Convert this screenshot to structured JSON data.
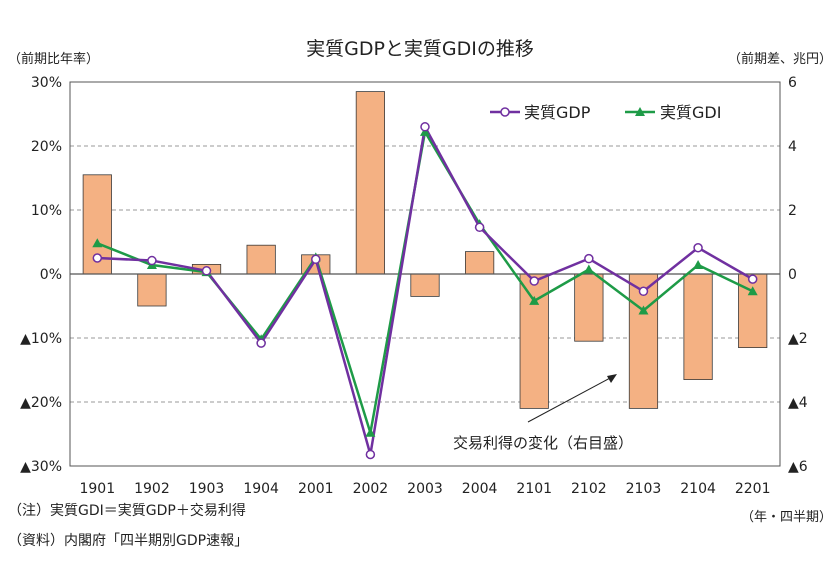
{
  "chart_data": {
    "type": "bar+line",
    "title": "実質GDPと実質GDIの推移",
    "ylabel_left": "（前期比年率）",
    "ylabel_right": "（前期差、兆円）",
    "xlabel": "（年・四半期）",
    "categories": [
      "1901",
      "1902",
      "1903",
      "1904",
      "2001",
      "2002",
      "2003",
      "2004",
      "2101",
      "2102",
      "2103",
      "2104",
      "2201"
    ],
    "left_axis": {
      "min": -30,
      "max": 30,
      "ticks": [
        30,
        20,
        10,
        0,
        -10,
        -20,
        -30
      ],
      "tick_labels": [
        "30%",
        "20%",
        "10%",
        "0%",
        "▲10%",
        "▲20%",
        "▲30%"
      ]
    },
    "right_axis": {
      "min": -6,
      "max": 6,
      "ticks": [
        6,
        4,
        2,
        0,
        -2,
        -4,
        -6
      ],
      "tick_labels": [
        "6",
        "4",
        "2",
        "0",
        "▲2",
        "▲4",
        "▲6"
      ]
    },
    "bar_series": {
      "name": "交易利得の変化（右目盛）",
      "axis": "right",
      "color": "#F4B183",
      "values": [
        3.1,
        -1.0,
        0.3,
        0.9,
        0.6,
        5.7,
        -0.7,
        0.7,
        -4.2,
        -2.1,
        -4.2,
        -3.3,
        -2.3
      ]
    },
    "line_series": [
      {
        "name": "実質GDP",
        "axis": "left",
        "color": "#7030A0",
        "marker": "circle",
        "values": [
          2.5,
          2.1,
          0.5,
          -10.8,
          2.3,
          -28.2,
          23.0,
          7.3,
          -1.1,
          2.4,
          -2.7,
          4.1,
          -0.8
        ]
      },
      {
        "name": "実質GDI",
        "axis": "left",
        "color": "#1E9B47",
        "marker": "triangle",
        "values": [
          4.8,
          1.4,
          0.3,
          -10.2,
          2.6,
          -24.8,
          22.2,
          7.8,
          -4.2,
          0.7,
          -5.7,
          1.4,
          -2.7
        ]
      }
    ],
    "legend": {
      "placement": "top-right"
    },
    "annotation": "交易利得の変化（右目盛）",
    "grid": {
      "horizontal": true,
      "style": "dashed"
    }
  },
  "notes": {
    "note": "（注）実質GDI＝実質GDP＋交易利得",
    "source": "（資料）内閣府「四半期別GDP速報」"
  }
}
